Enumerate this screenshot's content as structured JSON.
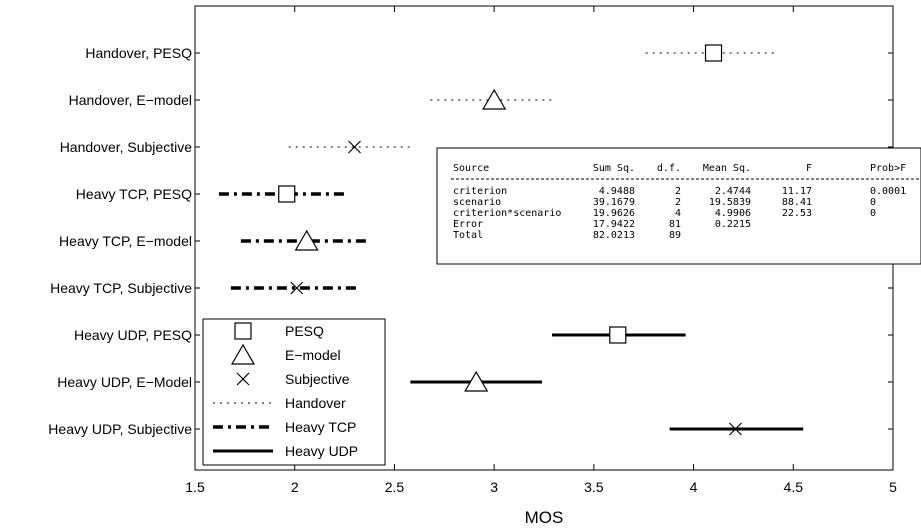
{
  "chart_data": {
    "type": "scatter",
    "title": "",
    "xlabel": "MOS",
    "ylabel": "",
    "xlim": [
      1.5,
      5
    ],
    "xticks": [
      "1.5",
      "2",
      "2.5",
      "3",
      "3.5",
      "4",
      "4.5",
      "5"
    ],
    "grid": false,
    "legend_position": "bottom-left",
    "categories": [
      "Handover, PESQ",
      "Handover, E−model",
      "Handover, Subjective",
      "Heavy TCP, PESQ",
      "Heavy TCP, E−model",
      "Heavy TCP, Subjective",
      "Heavy UDP, PESQ",
      "Heavy UDP, E−Model",
      "Heavy UDP, Subjective"
    ],
    "points": [
      {
        "mean": 4.1,
        "low": 3.76,
        "high": 4.41,
        "marker": "square",
        "line": "dotted"
      },
      {
        "mean": 3.0,
        "low": 2.68,
        "high": 3.31,
        "marker": "triangle",
        "line": "dotted"
      },
      {
        "mean": 2.3,
        "low": 1.97,
        "high": 2.6,
        "marker": "x",
        "line": "dotted"
      },
      {
        "mean": 1.96,
        "low": 1.62,
        "high": 2.26,
        "marker": "square",
        "line": "dashdot"
      },
      {
        "mean": 2.06,
        "low": 1.73,
        "high": 2.36,
        "marker": "triangle",
        "line": "dashdot"
      },
      {
        "mean": 2.01,
        "low": 1.68,
        "high": 2.31,
        "marker": "x",
        "line": "dashdot"
      },
      {
        "mean": 3.62,
        "low": 3.29,
        "high": 3.96,
        "marker": "square",
        "line": "solid"
      },
      {
        "mean": 2.91,
        "low": 2.58,
        "high": 3.24,
        "marker": "triangle",
        "line": "solid"
      },
      {
        "mean": 4.21,
        "low": 3.88,
        "high": 4.55,
        "marker": "x",
        "line": "solid"
      }
    ],
    "legend": [
      {
        "label": "PESQ",
        "symbol": "square"
      },
      {
        "label": "E−model",
        "symbol": "triangle"
      },
      {
        "label": "Subjective",
        "symbol": "x"
      },
      {
        "label": "Handover",
        "symbol": "dotted"
      },
      {
        "label": "Heavy TCP",
        "symbol": "dashdot"
      },
      {
        "label": "Heavy UDP",
        "symbol": "solid"
      }
    ],
    "anova_table": {
      "headers": [
        "Source",
        "Sum Sq.",
        "d.f.",
        "Mean Sq.",
        "F",
        "Prob>F"
      ],
      "rows": [
        [
          "criterion",
          "4.9488",
          "2",
          "2.4744",
          "11.17",
          "0.0001"
        ],
        [
          "scenario",
          "39.1679",
          "2",
          "19.5839",
          "88.41",
          "0"
        ],
        [
          "criterion*scenario",
          "19.9626",
          "4",
          "4.9906",
          "22.53",
          "0"
        ],
        [
          "Error",
          "17.9422",
          "81",
          "0.2215",
          "",
          ""
        ],
        [
          "Total",
          "82.0213",
          "89",
          "",
          "",
          ""
        ]
      ]
    }
  }
}
